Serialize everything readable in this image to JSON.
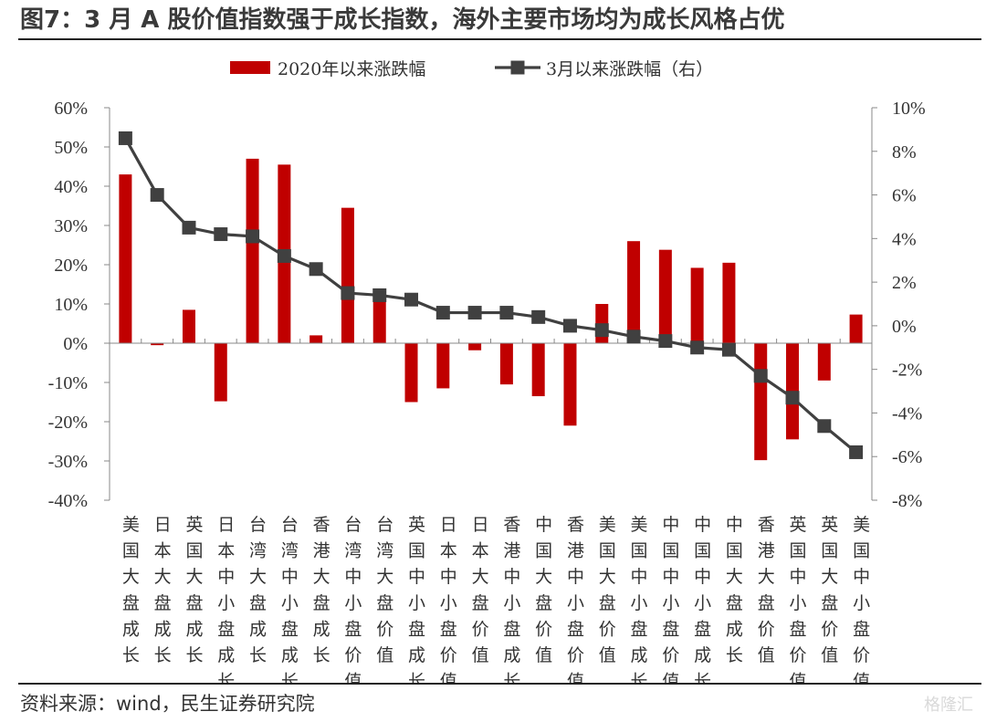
{
  "title": "图7：3 月 A 股价值指数强于成长指数，海外主要市场均为成长风格占优",
  "source": "资料来源：wind，民生证券研究院",
  "watermark": "格隆汇",
  "chart_data": {
    "type": "bar+line",
    "categories": [
      "美国大盘成长",
      "日本大盘成长",
      "英国大盘成长",
      "日本中小盘成长",
      "台湾大盘成长",
      "台湾中小盘成长",
      "香港大盘成长",
      "台湾中小盘价值",
      "台湾大盘价值",
      "英国中小盘成长",
      "日本中小盘价值",
      "日本大盘价值",
      "香港中小盘成长",
      "中国大盘价值",
      "香港中小盘价值",
      "美国大盘价值",
      "美国中小盘成长",
      "中国中小盘价值",
      "中国中小盘成长",
      "中国大盘成长",
      "香港大盘价值",
      "英国中小盘价值",
      "英国大盘价值",
      "美国中小盘价值"
    ],
    "series": [
      {
        "name": "2020年以来涨跌幅",
        "type": "bar",
        "axis": "left",
        "color": "#c00000",
        "values": [
          43,
          -0.5,
          8.5,
          -14.8,
          47,
          45.5,
          2,
          34.5,
          12,
          -15,
          -11.5,
          -1.8,
          -10.5,
          -13.5,
          -21,
          10,
          26,
          23.8,
          19.2,
          20.5,
          -29.8,
          -24.5,
          -9.5,
          7.3
        ]
      },
      {
        "name": "3月以来涨跌幅（右）",
        "type": "line",
        "axis": "right",
        "color": "#404040",
        "values": [
          8.6,
          6.0,
          4.5,
          4.2,
          4.1,
          3.2,
          2.6,
          1.5,
          1.4,
          1.2,
          0.6,
          0.6,
          0.6,
          0.4,
          0.0,
          -0.2,
          -0.5,
          -0.7,
          -1.0,
          -1.1,
          -2.3,
          -3.3,
          -4.6,
          -5.8
        ]
      }
    ],
    "left_axis": {
      "min": -40,
      "max": 60,
      "step": 10,
      "format": "percent"
    },
    "right_axis": {
      "min": -8,
      "max": 10,
      "step": 2,
      "format": "percent"
    },
    "legend_position": "top-center",
    "grid": false
  }
}
